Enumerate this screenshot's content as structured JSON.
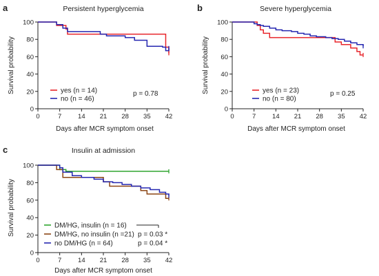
{
  "chart_data": [
    {
      "type": "line",
      "panel": "a",
      "title": "Persistent hyperglycemia",
      "xlabel": "Days after MCR symptom onset",
      "ylabel": "Survival probability",
      "xlim": [
        0,
        42
      ],
      "ylim": [
        0,
        100
      ],
      "xticks": [
        0,
        7,
        14,
        21,
        28,
        35,
        42
      ],
      "yticks": [
        0,
        20,
        40,
        60,
        80,
        100
      ],
      "legend_position": "bottom-left",
      "p_value": "p = 0.78",
      "series": [
        {
          "name": "yes (n = 14)",
          "color": "#e8242a",
          "x": [
            0,
            5,
            6,
            9,
            9.5,
            41,
            42
          ],
          "y": [
            100,
            100,
            96,
            92,
            86,
            71,
            64
          ]
        },
        {
          "name": "no (n = 46)",
          "color": "#2426b0",
          "x": [
            0,
            5,
            6,
            8,
            9.5,
            13,
            20,
            22,
            28,
            31,
            35,
            37,
            40,
            41,
            42
          ],
          "y": [
            100,
            100,
            97,
            93,
            89,
            89,
            86,
            84,
            82,
            79,
            72,
            72,
            71,
            67,
            70
          ]
        }
      ]
    },
    {
      "type": "line",
      "panel": "b",
      "title": "Severe hyperglycemia",
      "xlabel": "Days after MCR symptom onset",
      "ylabel": "Survival probability",
      "xlim": [
        0,
        42
      ],
      "ylim": [
        0,
        100
      ],
      "xticks": [
        0,
        7,
        14,
        21,
        28,
        35,
        42
      ],
      "yticks": [
        0,
        20,
        40,
        60,
        80,
        100
      ],
      "legend_position": "bottom-left",
      "p_value": "p = 0.25",
      "series": [
        {
          "name": "yes (n = 23)",
          "color": "#e8242a",
          "x": [
            0,
            7,
            8,
            9,
            10,
            12,
            33,
            35,
            38,
            40,
            41,
            42
          ],
          "y": [
            100,
            100,
            96,
            91,
            87,
            82,
            77,
            74,
            70,
            66,
            62,
            62
          ]
        },
        {
          "name": "no (n = 80)",
          "color": "#2426b0",
          "x": [
            0,
            6,
            7,
            8,
            9,
            10,
            12,
            14,
            16,
            19,
            21,
            23,
            25,
            27,
            30,
            32,
            34,
            36,
            38,
            40,
            42
          ],
          "y": [
            100,
            100,
            98,
            97,
            96,
            95,
            93,
            91,
            90,
            89,
            87,
            86,
            84,
            83,
            82,
            81,
            80,
            78,
            76,
            74,
            72
          ]
        }
      ]
    },
    {
      "type": "line",
      "panel": "c",
      "title": "Insulin at admission",
      "xlabel": "Days after MCR symptom onset",
      "ylabel": "Survival probability",
      "xlim": [
        0,
        42
      ],
      "ylim": [
        0,
        100
      ],
      "xticks": [
        0,
        7,
        14,
        21,
        28,
        35,
        42
      ],
      "yticks": [
        0,
        20,
        40,
        60,
        80,
        100
      ],
      "legend_position": "bottom-left",
      "p_values": [
        "p = 0.03 *",
        "p = 0.04 *"
      ],
      "series": [
        {
          "name": "DM/HG, insulin (n = 16)",
          "color": "#2ea52e",
          "x": [
            0,
            6,
            7,
            9,
            42
          ],
          "y": [
            100,
            100,
            95,
            93,
            93
          ]
        },
        {
          "name": "DM/HG, no insulin (n =21)",
          "color": "#8b4513",
          "x": [
            0,
            5,
            6,
            8,
            21,
            23,
            30,
            33,
            35,
            40,
            41,
            42
          ],
          "y": [
            100,
            100,
            95,
            86,
            81,
            76,
            76,
            71,
            67,
            67,
            62,
            62
          ]
        },
        {
          "name": "no DM/HG (n = 64)",
          "color": "#2426b0",
          "x": [
            0,
            5,
            7,
            8,
            11,
            14,
            18,
            21,
            24,
            27,
            30,
            33,
            36,
            39,
            41,
            42
          ],
          "y": [
            100,
            100,
            97,
            92,
            88,
            86,
            84,
            81,
            80,
            78,
            76,
            74,
            72,
            69,
            67,
            65
          ]
        }
      ]
    }
  ]
}
